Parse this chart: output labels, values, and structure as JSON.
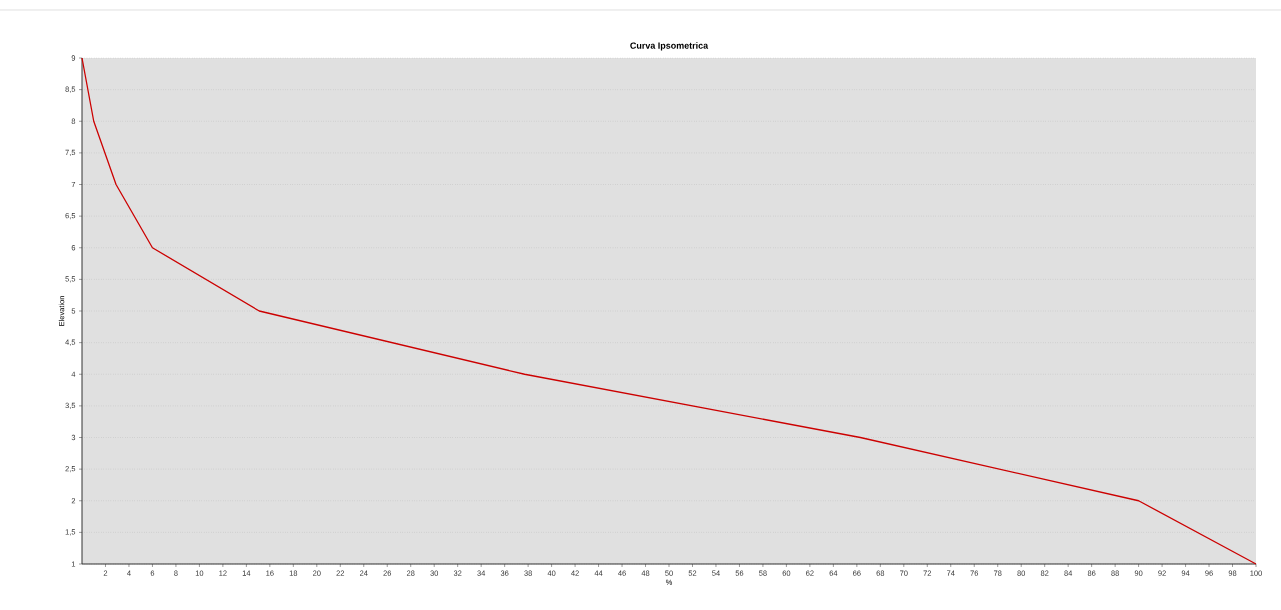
{
  "chart_data": {
    "type": "line",
    "title": "Curva Ipsometrica",
    "xlabel": "%",
    "ylabel": "Elevation",
    "x": [
      0,
      1,
      2.9,
      6,
      15.1,
      37.7,
      66.3,
      90,
      100
    ],
    "series": [
      {
        "color": "#cc0000",
        "values": [
          9,
          8,
          7,
          6,
          5,
          4,
          3,
          2,
          1
        ]
      }
    ],
    "xlim": [
      0,
      100
    ],
    "xticks": [
      2,
      4,
      6,
      8,
      10,
      12,
      14,
      16,
      18,
      20,
      22,
      24,
      26,
      28,
      30,
      32,
      34,
      36,
      38,
      40,
      42,
      44,
      46,
      48,
      50,
      52,
      54,
      56,
      58,
      60,
      62,
      64,
      66,
      68,
      70,
      72,
      74,
      76,
      78,
      80,
      82,
      84,
      86,
      88,
      90,
      92,
      94,
      96,
      98,
      100
    ],
    "ylim": [
      1,
      9
    ],
    "yticks": [
      1,
      {
        "value": 1.5,
        "label": "1,5"
      },
      2,
      {
        "value": 2.5,
        "label": "2,5"
      },
      3,
      {
        "value": 3.5,
        "label": "3,5"
      },
      4,
      {
        "value": 4.5,
        "label": "4,5"
      },
      5,
      {
        "value": 5.5,
        "label": "5,5"
      },
      6,
      {
        "value": 6.5,
        "label": "6,5"
      },
      7,
      {
        "value": 7.5,
        "label": "7,5"
      },
      8,
      {
        "value": 8.5,
        "label": "8,5"
      },
      9
    ],
    "grid": "y",
    "marker": "none",
    "line_style": "solid"
  }
}
